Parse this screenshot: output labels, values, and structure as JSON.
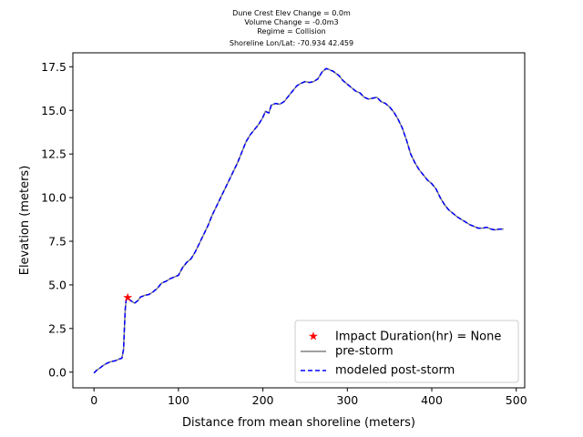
{
  "chart_data": {
    "type": "line",
    "title_lines": [
      "Dune Crest Elev Change = 0.0m",
      "Volume Change = -0.0m3",
      "Regime = Collision",
      "Shoreline Lon/Lat: -70.934 42.459"
    ],
    "xlabel": "Distance from mean shoreline (meters)",
    "ylabel": "Elevation (meters)",
    "xlim": [
      -25,
      510
    ],
    "ylim": [
      -0.9,
      18.3
    ],
    "xticks": [
      0,
      100,
      200,
      300,
      400,
      500
    ],
    "xtick_labels": [
      "0",
      "100",
      "200",
      "300",
      "400",
      "500"
    ],
    "yticks": [
      0,
      2.5,
      5,
      7.5,
      10,
      12.5,
      15,
      17.5
    ],
    "ytick_labels": [
      "0.0",
      "2.5",
      "5.0",
      "7.5",
      "10.0",
      "12.5",
      "15.0",
      "17.5"
    ],
    "legend_position": "lower right",
    "series": [
      {
        "name": "pre-storm",
        "style": "solid",
        "color": "#808080",
        "x": [
          0,
          3,
          6,
          10,
          15,
          20,
          25,
          30,
          33,
          35,
          36,
          37,
          38,
          39,
          40,
          42,
          45,
          48,
          52,
          55,
          60,
          65,
          70,
          75,
          80,
          85,
          90,
          95,
          100,
          105,
          110,
          115,
          120,
          125,
          130,
          135,
          140,
          145,
          150,
          155,
          160,
          165,
          170,
          175,
          180,
          185,
          190,
          195,
          200,
          203,
          207,
          210,
          215,
          220,
          225,
          230,
          235,
          240,
          245,
          250,
          255,
          260,
          265,
          270,
          275,
          278,
          280,
          283,
          287,
          290,
          295,
          300,
          305,
          310,
          315,
          320,
          325,
          330,
          335,
          340,
          345,
          350,
          355,
          360,
          365,
          370,
          375,
          380,
          385,
          390,
          395,
          400,
          405,
          410,
          415,
          420,
          425,
          430,
          435,
          440,
          445,
          450,
          455,
          460,
          465,
          470,
          475,
          480,
          485
        ],
        "y": [
          -0.05,
          0.1,
          0.2,
          0.35,
          0.5,
          0.6,
          0.65,
          0.75,
          0.8,
          1.3,
          2.5,
          3.6,
          4.1,
          4.25,
          4.2,
          4.15,
          4.05,
          3.95,
          4.1,
          4.3,
          4.4,
          4.45,
          4.6,
          4.8,
          5.1,
          5.2,
          5.35,
          5.45,
          5.55,
          6.0,
          6.3,
          6.5,
          6.9,
          7.4,
          7.9,
          8.4,
          9.0,
          9.5,
          10.0,
          10.5,
          11.0,
          11.5,
          12.0,
          12.6,
          13.2,
          13.6,
          13.9,
          14.2,
          14.6,
          14.95,
          14.85,
          15.3,
          15.4,
          15.35,
          15.5,
          15.8,
          16.1,
          16.4,
          16.55,
          16.65,
          16.6,
          16.65,
          16.8,
          17.2,
          17.4,
          17.35,
          17.3,
          17.25,
          17.1,
          17.0,
          16.7,
          16.5,
          16.3,
          16.1,
          16.0,
          15.75,
          15.65,
          15.7,
          15.75,
          15.5,
          15.4,
          15.2,
          14.9,
          14.5,
          14.0,
          13.3,
          12.5,
          12.0,
          11.6,
          11.3,
          11.0,
          10.8,
          10.5,
          10.0,
          9.6,
          9.3,
          9.1,
          8.9,
          8.75,
          8.6,
          8.45,
          8.35,
          8.25,
          8.25,
          8.3,
          8.2,
          8.15,
          8.2,
          8.2
        ]
      },
      {
        "name": "modeled post-storm",
        "style": "dashed",
        "color": "#0000ff",
        "x": [
          0,
          3,
          6,
          10,
          15,
          20,
          25,
          30,
          33,
          35,
          36,
          37,
          38,
          39,
          40,
          42,
          45,
          48,
          52,
          55,
          60,
          65,
          70,
          75,
          80,
          85,
          90,
          95,
          100,
          105,
          110,
          115,
          120,
          125,
          130,
          135,
          140,
          145,
          150,
          155,
          160,
          165,
          170,
          175,
          180,
          185,
          190,
          195,
          200,
          203,
          207,
          210,
          215,
          220,
          225,
          230,
          235,
          240,
          245,
          250,
          255,
          260,
          265,
          270,
          275,
          278,
          280,
          283,
          287,
          290,
          295,
          300,
          305,
          310,
          315,
          320,
          325,
          330,
          335,
          340,
          345,
          350,
          355,
          360,
          365,
          370,
          375,
          380,
          385,
          390,
          395,
          400,
          405,
          410,
          415,
          420,
          425,
          430,
          435,
          440,
          445,
          450,
          455,
          460,
          465,
          470,
          475,
          480,
          485
        ],
        "y": [
          -0.05,
          0.1,
          0.2,
          0.35,
          0.5,
          0.6,
          0.65,
          0.75,
          0.8,
          1.3,
          2.5,
          3.6,
          4.1,
          4.25,
          4.2,
          4.15,
          4.05,
          3.95,
          4.1,
          4.3,
          4.4,
          4.45,
          4.6,
          4.8,
          5.1,
          5.2,
          5.35,
          5.45,
          5.55,
          6.0,
          6.3,
          6.5,
          6.9,
          7.4,
          7.9,
          8.4,
          9.0,
          9.5,
          10.0,
          10.5,
          11.0,
          11.5,
          12.0,
          12.6,
          13.2,
          13.6,
          13.9,
          14.2,
          14.6,
          14.95,
          14.85,
          15.3,
          15.4,
          15.35,
          15.5,
          15.8,
          16.1,
          16.4,
          16.55,
          16.65,
          16.6,
          16.65,
          16.8,
          17.2,
          17.4,
          17.35,
          17.3,
          17.25,
          17.1,
          17.0,
          16.7,
          16.5,
          16.3,
          16.1,
          16.0,
          15.75,
          15.65,
          15.7,
          15.75,
          15.5,
          15.4,
          15.2,
          14.9,
          14.5,
          14.0,
          13.3,
          12.5,
          12.0,
          11.6,
          11.3,
          11.0,
          10.8,
          10.5,
          10.0,
          9.6,
          9.3,
          9.1,
          8.9,
          8.75,
          8.6,
          8.45,
          8.35,
          8.25,
          8.25,
          8.3,
          8.2,
          8.15,
          8.2,
          8.2
        ]
      },
      {
        "name": "Impact Duration(hr) = None",
        "style": "marker-star",
        "color": "#ff0000",
        "x": [
          40
        ],
        "y": [
          4.25
        ]
      }
    ],
    "legend": [
      {
        "label": "Impact Duration(hr) = None",
        "style": "marker-star",
        "color": "#ff0000"
      },
      {
        "label": "pre-storm",
        "style": "solid",
        "color": "#808080"
      },
      {
        "label": "modeled post-storm",
        "style": "dashed",
        "color": "#0000ff"
      }
    ]
  }
}
